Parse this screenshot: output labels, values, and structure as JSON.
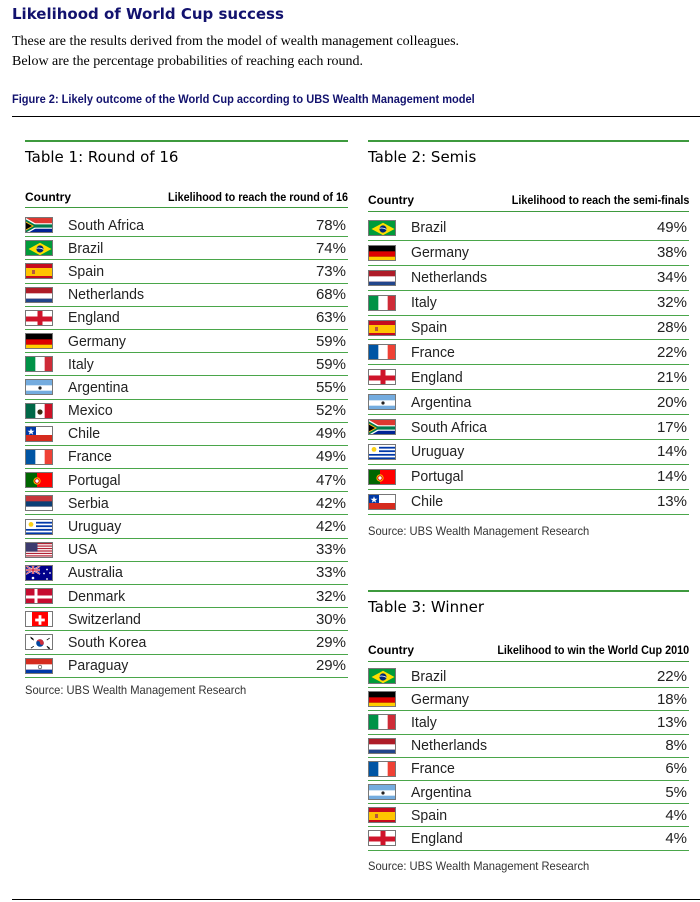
{
  "title": "Likelihood of World Cup success",
  "intro_line1": "These are the results derived from the model of wealth management colleagues.",
  "intro_line2": "Below are the percentage probabilities of reaching each round.",
  "figure_caption": "Figure 2: Likely outcome of the World Cup according to UBS Wealth Management model",
  "table1": {
    "title": "Table 1: Round of 16",
    "header_country": "Country",
    "header_value": "Likelihood to reach the round of 16",
    "source": "Source: UBS Wealth Management Research",
    "rows": [
      {
        "country": "South Africa",
        "value": "78%",
        "flag": "south-africa-flag-icon"
      },
      {
        "country": "Brazil",
        "value": "74%",
        "flag": "brazil-flag-icon"
      },
      {
        "country": "Spain",
        "value": "73%",
        "flag": "spain-flag-icon"
      },
      {
        "country": "Netherlands",
        "value": "68%",
        "flag": "netherlands-flag-icon"
      },
      {
        "country": "England",
        "value": "63%",
        "flag": "england-flag-icon"
      },
      {
        "country": "Germany",
        "value": "59%",
        "flag": "germany-flag-icon"
      },
      {
        "country": "Italy",
        "value": "59%",
        "flag": "italy-flag-icon"
      },
      {
        "country": "Argentina",
        "value": "55%",
        "flag": "argentina-flag-icon"
      },
      {
        "country": "Mexico",
        "value": "52%",
        "flag": "mexico-flag-icon"
      },
      {
        "country": "Chile",
        "value": "49%",
        "flag": "chile-flag-icon"
      },
      {
        "country": "France",
        "value": "49%",
        "flag": "france-flag-icon"
      },
      {
        "country": "Portugal",
        "value": "47%",
        "flag": "portugal-flag-icon"
      },
      {
        "country": "Serbia",
        "value": "42%",
        "flag": "serbia-flag-icon"
      },
      {
        "country": "Uruguay",
        "value": "42%",
        "flag": "uruguay-flag-icon"
      },
      {
        "country": "USA",
        "value": "33%",
        "flag": "usa-flag-icon"
      },
      {
        "country": "Australia",
        "value": "33%",
        "flag": "australia-flag-icon"
      },
      {
        "country": "Denmark",
        "value": "32%",
        "flag": "denmark-flag-icon"
      },
      {
        "country": "Switzerland",
        "value": "30%",
        "flag": "switzerland-flag-icon"
      },
      {
        "country": "South Korea",
        "value": "29%",
        "flag": "south-korea-flag-icon"
      },
      {
        "country": "Paraguay",
        "value": "29%",
        "flag": "paraguay-flag-icon"
      }
    ]
  },
  "table2": {
    "title": "Table 2: Semis",
    "header_country": "Country",
    "header_value": "Likelihood to reach the semi-finals",
    "source": "Source: UBS Wealth Management Research",
    "rows": [
      {
        "country": "Brazil",
        "value": "49%",
        "flag": "brazil-flag-icon"
      },
      {
        "country": "Germany",
        "value": "38%",
        "flag": "germany-flag-icon"
      },
      {
        "country": "Netherlands",
        "value": "34%",
        "flag": "netherlands-flag-icon"
      },
      {
        "country": "Italy",
        "value": "32%",
        "flag": "italy-flag-icon"
      },
      {
        "country": "Spain",
        "value": "28%",
        "flag": "spain-flag-icon"
      },
      {
        "country": "France",
        "value": "22%",
        "flag": "france-flag-icon"
      },
      {
        "country": "England",
        "value": "21%",
        "flag": "england-flag-icon"
      },
      {
        "country": "Argentina",
        "value": "20%",
        "flag": "argentina-flag-icon"
      },
      {
        "country": "South Africa",
        "value": "17%",
        "flag": "south-africa-flag-icon"
      },
      {
        "country": "Uruguay",
        "value": "14%",
        "flag": "uruguay-flag-icon"
      },
      {
        "country": "Portugal",
        "value": "14%",
        "flag": "portugal-flag-icon"
      },
      {
        "country": "Chile",
        "value": "13%",
        "flag": "chile-flag-icon"
      }
    ]
  },
  "table3": {
    "title": "Table 3: Winner",
    "header_country": "Country",
    "header_value": "Likelihood to win the World Cup 2010",
    "source": "Source: UBS Wealth Management Research",
    "rows": [
      {
        "country": "Brazil",
        "value": "22%",
        "flag": "brazil-flag-icon"
      },
      {
        "country": "Germany",
        "value": "18%",
        "flag": "germany-flag-icon"
      },
      {
        "country": "Italy",
        "value": "13%",
        "flag": "italy-flag-icon"
      },
      {
        "country": "Netherlands",
        "value": "8%",
        "flag": "netherlands-flag-icon"
      },
      {
        "country": "France",
        "value": "6%",
        "flag": "france-flag-icon"
      },
      {
        "country": "Argentina",
        "value": "5%",
        "flag": "argentina-flag-icon"
      },
      {
        "country": "Spain",
        "value": "4%",
        "flag": "spain-flag-icon"
      },
      {
        "country": "England",
        "value": "4%",
        "flag": "england-flag-icon"
      }
    ]
  }
}
